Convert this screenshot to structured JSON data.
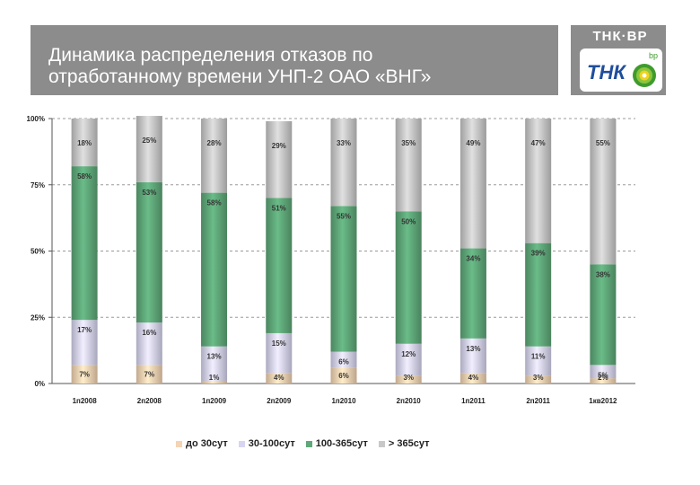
{
  "header": {
    "title": "Динамика распределения отказов по\nотработанному времени УНП-2 ОАО «ВНГ»",
    "logo_text": "ТНК·ВР",
    "logo_emblem_text": "ТНК",
    "logo_bp_text": "bp"
  },
  "colors": {
    "title_bg": "#8c8c8c",
    "s1": "#f4d4b4",
    "s2": "#d7d5f0",
    "s3": "#5fa879",
    "s4": "#c8c8c8",
    "bp_green": "#3f9b2d",
    "bp_yellow": "#f2d21b",
    "tnk_blue": "#1f4e9c"
  },
  "chart_data": {
    "type": "bar",
    "stacked": true,
    "title": "",
    "xlabel": "",
    "ylabel": "",
    "ylim": [
      0,
      100
    ],
    "yticks": [
      "0%",
      "25%",
      "50%",
      "75%",
      "100%"
    ],
    "ytick_values": [
      0,
      25,
      50,
      75,
      100
    ],
    "grid": true,
    "legend_position": "bottom",
    "categories": [
      "1п2008",
      "2п2008",
      "1п2009",
      "2п2009",
      "1п2010",
      "2п2010",
      "1п2011",
      "2п2011",
      "1кв2012"
    ],
    "series": [
      {
        "name": "до 30сут",
        "values": [
          7,
          7,
          1,
          4,
          6,
          3,
          4,
          3,
          2
        ],
        "labels": [
          "7%",
          "7%",
          "1%",
          "4%",
          "6%",
          "3%",
          "4%",
          "3%",
          "2%"
        ]
      },
      {
        "name": "30-100сут",
        "values": [
          17,
          16,
          13,
          15,
          6,
          12,
          13,
          11,
          5
        ],
        "labels": [
          "17%",
          "16%",
          "13%",
          "15%",
          "6%",
          "12%",
          "13%",
          "11%",
          "5%"
        ]
      },
      {
        "name": "100-365сут",
        "values": [
          58,
          53,
          58,
          51,
          55,
          50,
          34,
          39,
          38
        ],
        "labels": [
          "58%",
          "53%",
          "58%",
          "51%",
          "55%",
          "50%",
          "34%",
          "39%",
          "38%"
        ]
      },
      {
        "name": "> 365сут",
        "values": [
          18,
          25,
          28,
          29,
          33,
          35,
          49,
          47,
          55
        ],
        "labels": [
          "18%",
          "25%",
          "28%",
          "29%",
          "33%",
          "35%",
          "49%",
          "47%",
          "55%"
        ]
      }
    ]
  }
}
